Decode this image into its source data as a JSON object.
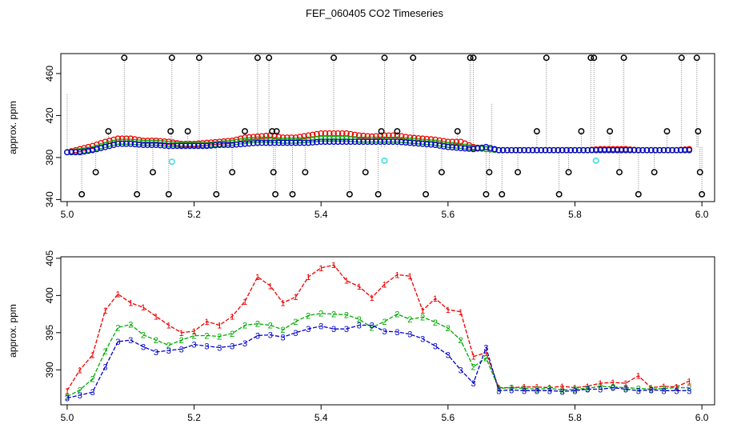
{
  "figure_title": "FEF_060405  CO2 Timeseries",
  "colors": {
    "series1": "#ee0000",
    "series2": "#00aa00",
    "series3": "#0000cc",
    "spikes": "#000000",
    "cyan": "#33dddd",
    "vline": "#888888"
  },
  "chart_data": [
    {
      "type": "scatter",
      "ylabel": "approx. ppm",
      "xlabel": "",
      "xlim": [
        4.99,
        6.02
      ],
      "ylim": [
        338,
        479
      ],
      "xticks": [
        5.0,
        5.2,
        5.4,
        5.6,
        5.8,
        6.0
      ],
      "xtick_labels": [
        "5.0",
        "5.2",
        "5.4",
        "5.6",
        "5.8",
        "6.0"
      ],
      "yticks": [
        340,
        380,
        420,
        460
      ],
      "ytick_labels": [
        "340",
        "380",
        "420",
        "460"
      ],
      "grid": false,
      "legend": "none",
      "marker": "open-circle",
      "series": [
        {
          "name": "1",
          "x": [
            5.0,
            5.02,
            5.04,
            5.06,
            5.08,
            5.1,
            5.12,
            5.14,
            5.16,
            5.18,
            5.2,
            5.22,
            5.24,
            5.26,
            5.28,
            5.3,
            5.32,
            5.34,
            5.36,
            5.38,
            5.4,
            5.42,
            5.44,
            5.46,
            5.48,
            5.5,
            5.52,
            5.54,
            5.56,
            5.58,
            5.6,
            5.62,
            5.64,
            5.66,
            5.68,
            5.7,
            5.72,
            5.74,
            5.76,
            5.78,
            5.8,
            5.82,
            5.84,
            5.86,
            5.88,
            5.9,
            5.92,
            5.94,
            5.96,
            5.98
          ],
          "values": [
            385,
            388,
            391,
            395,
            398,
            398,
            396,
            396,
            395,
            393,
            393,
            394,
            395,
            396,
            399,
            400,
            401,
            399,
            399,
            401,
            403,
            403,
            403,
            401,
            400,
            401,
            401,
            399,
            398,
            397,
            395,
            395,
            390,
            388,
            387,
            387,
            387,
            387,
            387,
            387,
            387,
            387,
            388,
            388,
            388,
            387,
            387,
            387,
            387,
            388
          ]
        },
        {
          "name": "2",
          "x": [
            5.0,
            5.02,
            5.04,
            5.06,
            5.08,
            5.1,
            5.12,
            5.14,
            5.16,
            5.18,
            5.2,
            5.22,
            5.24,
            5.26,
            5.28,
            5.3,
            5.32,
            5.34,
            5.36,
            5.38,
            5.4,
            5.42,
            5.44,
            5.46,
            5.48,
            5.5,
            5.52,
            5.54,
            5.56,
            5.58,
            5.6,
            5.62,
            5.64,
            5.66,
            5.68,
            5.7,
            5.72,
            5.74,
            5.76,
            5.78,
            5.8,
            5.82,
            5.84,
            5.86,
            5.88,
            5.9,
            5.92,
            5.94,
            5.96,
            5.98
          ],
          "values": [
            385,
            386,
            388,
            392,
            395,
            395,
            394,
            394,
            393,
            392,
            392,
            392,
            393,
            394,
            396,
            397,
            397,
            396,
            396,
            397,
            398,
            398,
            398,
            397,
            397,
            397,
            397,
            396,
            395,
            394,
            392,
            391,
            389,
            388,
            387,
            387,
            387,
            387,
            387,
            387,
            387,
            387,
            387,
            387,
            387,
            387,
            387,
            387,
            387,
            387
          ]
        },
        {
          "name": "3",
          "x": [
            5.0,
            5.02,
            5.04,
            5.06,
            5.08,
            5.1,
            5.12,
            5.14,
            5.16,
            5.18,
            5.2,
            5.22,
            5.24,
            5.26,
            5.28,
            5.3,
            5.32,
            5.34,
            5.36,
            5.38,
            5.4,
            5.42,
            5.44,
            5.46,
            5.48,
            5.5,
            5.52,
            5.54,
            5.56,
            5.58,
            5.6,
            5.62,
            5.64,
            5.66,
            5.68,
            5.7,
            5.72,
            5.74,
            5.76,
            5.78,
            5.8,
            5.82,
            5.84,
            5.86,
            5.88,
            5.9,
            5.92,
            5.94,
            5.96,
            5.98
          ],
          "values": [
            385,
            385,
            387,
            390,
            393,
            393,
            392,
            392,
            391,
            391,
            391,
            391,
            392,
            392,
            393,
            394,
            394,
            394,
            394,
            394,
            395,
            395,
            395,
            395,
            395,
            395,
            395,
            394,
            393,
            392,
            390,
            389,
            388,
            390,
            387,
            387,
            387,
            387,
            387,
            387,
            387,
            387,
            387,
            387,
            387,
            387,
            387,
            387,
            387,
            387
          ]
        },
        {
          "name": "spikes",
          "x": [
            5.023,
            5.045,
            5.065,
            5.09,
            5.11,
            5.135,
            5.16,
            5.163,
            5.165,
            5.19,
            5.208,
            5.235,
            5.26,
            5.28,
            5.3,
            5.318,
            5.323,
            5.325,
            5.328,
            5.33,
            5.355,
            5.375,
            5.42,
            5.445,
            5.47,
            5.49,
            5.495,
            5.5,
            5.52,
            5.545,
            5.565,
            5.59,
            5.615,
            5.635,
            5.64,
            5.66,
            5.665,
            5.685,
            5.71,
            5.74,
            5.755,
            5.775,
            5.79,
            5.81,
            5.825,
            5.83,
            5.855,
            5.87,
            5.877,
            5.9,
            5.925,
            5.945,
            5.968,
            5.992,
            5.994,
            5.997,
            6.0
          ],
          "values": [
            345,
            366,
            405,
            475,
            345,
            366,
            345,
            405,
            475,
            405,
            475,
            345,
            366,
            405,
            475,
            475,
            405,
            366,
            345,
            405,
            345,
            366,
            475,
            345,
            366,
            345,
            405,
            475,
            405,
            475,
            345,
            366,
            405,
            475,
            475,
            345,
            366,
            345,
            366,
            405,
            475,
            345,
            366,
            405,
            475,
            475,
            405,
            366,
            475,
            345,
            366,
            405,
            475,
            475,
            405,
            366,
            345
          ]
        },
        {
          "name": "cyan",
          "x": [
            5.165,
            5.5,
            5.833
          ],
          "values": [
            376,
            377,
            377
          ]
        }
      ]
    },
    {
      "type": "line",
      "ylabel": "approx. ppm",
      "xlabel": "",
      "xlim": [
        4.99,
        6.02
      ],
      "ylim": [
        385.3,
        405.2
      ],
      "xticks": [
        5.0,
        5.2,
        5.4,
        5.6,
        5.8,
        6.0
      ],
      "xtick_labels": [
        "5.0",
        "5.2",
        "5.4",
        "5.6",
        "5.8",
        "6.0"
      ],
      "yticks": [
        390,
        395,
        400,
        405
      ],
      "ytick_labels": [
        "390",
        "395",
        "400",
        "405"
      ],
      "grid": false,
      "legend": "none",
      "marker": "series-number",
      "x": [
        5.0,
        5.02,
        5.04,
        5.06,
        5.08,
        5.1,
        5.12,
        5.14,
        5.16,
        5.18,
        5.2,
        5.22,
        5.24,
        5.26,
        5.28,
        5.3,
        5.32,
        5.34,
        5.36,
        5.38,
        5.4,
        5.42,
        5.44,
        5.46,
        5.48,
        5.5,
        5.52,
        5.54,
        5.56,
        5.58,
        5.6,
        5.62,
        5.64,
        5.66,
        5.68,
        5.7,
        5.72,
        5.74,
        5.76,
        5.78,
        5.8,
        5.82,
        5.84,
        5.86,
        5.88,
        5.9,
        5.92,
        5.94,
        5.96,
        5.98
      ],
      "series": [
        {
          "name": "1",
          "label": "1",
          "values": [
            387.2,
            390.0,
            392.0,
            398.0,
            400.2,
            399.0,
            398.4,
            397.2,
            396.0,
            395.0,
            395.2,
            396.5,
            396.0,
            397.2,
            399.2,
            402.5,
            401.3,
            399.0,
            399.8,
            402.5,
            403.7,
            404.1,
            402.0,
            401.2,
            399.7,
            401.5,
            402.8,
            402.6,
            398.0,
            399.6,
            398.1,
            397.8,
            391.8,
            392.3,
            387.6,
            387.6,
            387.7,
            387.7,
            387.6,
            387.8,
            387.6,
            387.8,
            388.2,
            388.3,
            388.2,
            389.2,
            387.6,
            387.8,
            387.7,
            388.5
          ]
        },
        {
          "name": "2",
          "label": "2",
          "values": [
            386.4,
            387.3,
            388.8,
            392.5,
            395.7,
            396.1,
            394.7,
            394.0,
            393.3,
            394.0,
            394.6,
            394.6,
            394.5,
            394.9,
            396.0,
            396.2,
            396.0,
            395.4,
            396.5,
            397.3,
            397.6,
            397.5,
            397.4,
            396.8,
            395.7,
            396.5,
            397.5,
            396.8,
            397.1,
            396.4,
            395.6,
            394.0,
            390.4,
            391.6,
            387.5,
            387.6,
            387.5,
            387.4,
            387.5,
            387.3,
            387.4,
            387.5,
            387.8,
            387.7,
            387.6,
            387.5,
            387.4,
            387.5,
            387.6,
            387.6
          ]
        },
        {
          "name": "3",
          "label": "3",
          "values": [
            386.2,
            386.6,
            387.0,
            390.4,
            393.8,
            394.0,
            393.1,
            392.4,
            392.6,
            392.8,
            393.4,
            393.2,
            393.0,
            393.2,
            393.6,
            394.6,
            394.7,
            394.4,
            395.0,
            395.5,
            395.9,
            395.5,
            395.5,
            396.0,
            396.0,
            395.2,
            395.1,
            394.8,
            394.2,
            393.2,
            392.0,
            390.0,
            388.2,
            393.0,
            387.2,
            387.3,
            387.2,
            387.2,
            387.2,
            387.1,
            387.2,
            387.4,
            387.4,
            387.6,
            387.4,
            387.2,
            387.3,
            387.2,
            387.2,
            387.2
          ]
        }
      ]
    }
  ]
}
